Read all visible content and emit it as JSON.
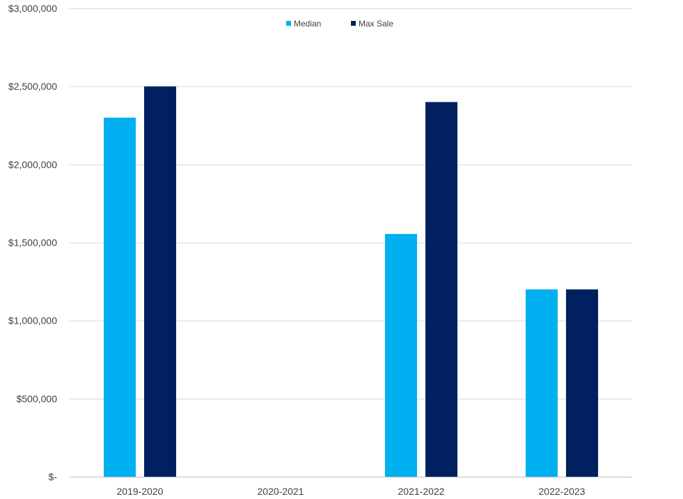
{
  "chart_data": {
    "type": "bar",
    "categories": [
      "2019-2020",
      "2020-2021",
      "2021-2022",
      "2022-2023"
    ],
    "series": [
      {
        "name": "Median",
        "values": [
          2300000,
          0,
          1555000,
          1200000
        ],
        "color": "#00B0F0"
      },
      {
        "name": "Max Sale",
        "values": [
          2500000,
          0,
          2400000,
          1200000
        ],
        "color": "#002060"
      }
    ],
    "ylim": [
      0,
      3000000
    ],
    "yticks": [
      0,
      500000,
      1000000,
      1500000,
      2000000,
      2500000,
      3000000
    ],
    "ytick_labels": [
      "$-",
      "$500,000",
      "$1,000,000",
      "$1,500,000",
      "$2,000,000",
      "$2,500,000",
      "$3,000,000"
    ],
    "grid": true,
    "legend": "top-center",
    "title": "",
    "xlabel": "",
    "ylabel": ""
  }
}
